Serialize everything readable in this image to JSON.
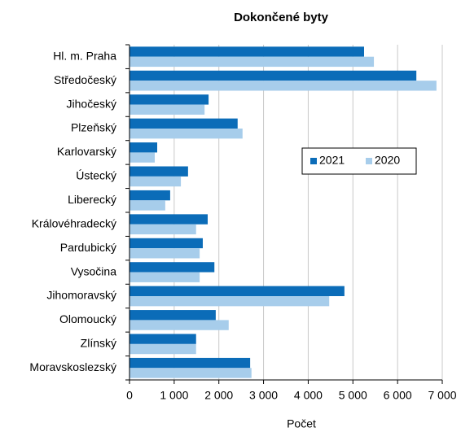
{
  "chart_data": {
    "type": "hbar",
    "title": "Dokončené byty",
    "x_label": "Počet",
    "categories": [
      "Hl. m. Praha",
      "Středočeský",
      "Jihočeský",
      "Plzeňský",
      "Karlovarský",
      "Ústecký",
      "Liberecký",
      "Královéhradecký",
      "Pardubický",
      "Vysočina",
      "Jihomoravský",
      "Olomoucký",
      "Zlínský",
      "Moravskoslezský"
    ],
    "series": [
      {
        "name": "2021",
        "color": "#0b6cb8",
        "values": [
          5250,
          6420,
          1770,
          2420,
          620,
          1310,
          910,
          1750,
          1640,
          1900,
          4810,
          1930,
          1490,
          2700
        ]
      },
      {
        "name": "2020",
        "color": "#a7cdeb",
        "values": [
          5470,
          6870,
          1680,
          2530,
          565,
          1150,
          800,
          1490,
          1570,
          1570,
          4470,
          2220,
          1490,
          2730
        ]
      }
    ],
    "xlim": [
      0,
      7000
    ],
    "xticks": [
      0,
      {
        "value": 1000,
        "label": "1 000"
      },
      {
        "value": 2000,
        "label": "2 000"
      },
      {
        "value": 3000,
        "label": "3 000"
      },
      {
        "value": 4000,
        "label": "4 000"
      },
      {
        "value": 5000,
        "label": "5 000"
      },
      {
        "value": 6000,
        "label": "6 000"
      },
      {
        "value": 7000,
        "label": "7 000"
      }
    ],
    "grid": true,
    "legend": "right"
  }
}
